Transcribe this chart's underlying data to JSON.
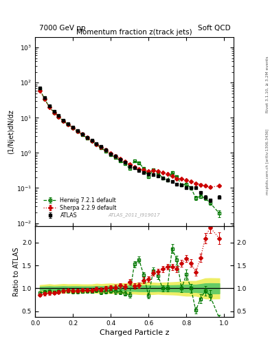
{
  "title_top_left": "7000 GeV pp",
  "title_top_right": "Soft QCD",
  "main_title": "Momentum fraction z(track jets)",
  "xlabel": "Charged Particle z",
  "ylabel_main": "(1/Njet)dN/dz",
  "ylabel_ratio": "Ratio to ATLAS",
  "right_label_top": "Rivet 3.1.10, ≥ 3.2M events",
  "right_label_bottom": "mcplots.cern.ch [arXiv:1306.3436]",
  "watermark": "ATLAS_2011_I919017",
  "atlas_z": [
    0.025,
    0.05,
    0.075,
    0.1,
    0.125,
    0.15,
    0.175,
    0.2,
    0.225,
    0.25,
    0.275,
    0.3,
    0.325,
    0.35,
    0.375,
    0.4,
    0.425,
    0.45,
    0.475,
    0.5,
    0.525,
    0.55,
    0.575,
    0.6,
    0.625,
    0.65,
    0.675,
    0.7,
    0.725,
    0.75,
    0.775,
    0.8,
    0.825,
    0.85,
    0.875,
    0.9,
    0.925,
    0.975
  ],
  "atlas_y": [
    70.0,
    38.0,
    22.0,
    15.5,
    11.5,
    8.5,
    6.8,
    5.5,
    4.4,
    3.5,
    2.8,
    2.3,
    1.8,
    1.5,
    1.2,
    0.95,
    0.8,
    0.65,
    0.55,
    0.42,
    0.38,
    0.32,
    0.28,
    0.25,
    0.24,
    0.22,
    0.19,
    0.17,
    0.15,
    0.13,
    0.12,
    0.1,
    0.1,
    0.1,
    0.075,
    0.055,
    0.045,
    0.055
  ],
  "atlas_yerr": [
    2.5,
    1.5,
    1.0,
    0.6,
    0.5,
    0.4,
    0.3,
    0.25,
    0.2,
    0.15,
    0.12,
    0.1,
    0.09,
    0.07,
    0.06,
    0.05,
    0.04,
    0.035,
    0.03,
    0.025,
    0.022,
    0.02,
    0.018,
    0.016,
    0.015,
    0.013,
    0.012,
    0.011,
    0.01,
    0.009,
    0.009,
    0.008,
    0.008,
    0.008,
    0.007,
    0.006,
    0.005,
    0.006
  ],
  "herwig_z": [
    0.025,
    0.05,
    0.075,
    0.1,
    0.125,
    0.15,
    0.175,
    0.2,
    0.225,
    0.25,
    0.275,
    0.3,
    0.325,
    0.35,
    0.375,
    0.4,
    0.425,
    0.45,
    0.475,
    0.5,
    0.525,
    0.55,
    0.575,
    0.6,
    0.625,
    0.65,
    0.675,
    0.7,
    0.725,
    0.75,
    0.775,
    0.8,
    0.825,
    0.85,
    0.875,
    0.9,
    0.925,
    0.975
  ],
  "herwig_y": [
    63.0,
    35.0,
    20.5,
    14.2,
    10.8,
    8.0,
    6.4,
    5.1,
    4.1,
    3.28,
    2.65,
    2.15,
    1.72,
    1.38,
    1.12,
    0.9,
    0.74,
    0.6,
    0.49,
    0.36,
    0.58,
    0.52,
    0.36,
    0.21,
    0.33,
    0.28,
    0.19,
    0.17,
    0.28,
    0.21,
    0.12,
    0.13,
    0.1,
    0.052,
    0.058,
    0.052,
    0.038,
    0.019
  ],
  "herwig_yerr": [
    2.0,
    1.3,
    0.9,
    0.55,
    0.45,
    0.35,
    0.28,
    0.22,
    0.18,
    0.14,
    0.11,
    0.09,
    0.08,
    0.07,
    0.06,
    0.05,
    0.04,
    0.035,
    0.03,
    0.025,
    0.025,
    0.022,
    0.02,
    0.016,
    0.018,
    0.015,
    0.013,
    0.012,
    0.015,
    0.013,
    0.01,
    0.011,
    0.01,
    0.007,
    0.007,
    0.006,
    0.005,
    0.004
  ],
  "sherpa_z": [
    0.025,
    0.05,
    0.075,
    0.1,
    0.125,
    0.15,
    0.175,
    0.2,
    0.225,
    0.25,
    0.275,
    0.3,
    0.325,
    0.35,
    0.375,
    0.4,
    0.425,
    0.45,
    0.475,
    0.5,
    0.525,
    0.55,
    0.575,
    0.6,
    0.625,
    0.65,
    0.675,
    0.7,
    0.725,
    0.75,
    0.775,
    0.8,
    0.825,
    0.85,
    0.875,
    0.9,
    0.925,
    0.975
  ],
  "sherpa_y": [
    59.5,
    33.5,
    19.8,
    14.0,
    10.6,
    8.0,
    6.5,
    5.25,
    4.2,
    3.38,
    2.7,
    2.2,
    1.78,
    1.46,
    1.2,
    0.97,
    0.82,
    0.69,
    0.57,
    0.48,
    0.4,
    0.34,
    0.33,
    0.3,
    0.32,
    0.3,
    0.27,
    0.25,
    0.22,
    0.185,
    0.185,
    0.165,
    0.155,
    0.135,
    0.125,
    0.115,
    0.105,
    0.115
  ],
  "sherpa_yerr": [
    2.0,
    1.3,
    0.9,
    0.55,
    0.45,
    0.35,
    0.28,
    0.22,
    0.18,
    0.14,
    0.11,
    0.09,
    0.08,
    0.07,
    0.06,
    0.05,
    0.04,
    0.035,
    0.03,
    0.025,
    0.022,
    0.02,
    0.018,
    0.016,
    0.015,
    0.013,
    0.012,
    0.011,
    0.01,
    0.009,
    0.009,
    0.008,
    0.008,
    0.008,
    0.007,
    0.006,
    0.006,
    0.007
  ],
  "atlas_color": "#000000",
  "herwig_color": "#007700",
  "sherpa_color": "#cc0000",
  "band_yellow": "#eeee66",
  "band_green": "#66cc66",
  "xlim": [
    0.0,
    1.05
  ],
  "ylim_main": [
    0.008,
    2000
  ],
  "ylim_ratio": [
    0.38,
    2.35
  ],
  "ratio_yticks": [
    0.5,
    1.0,
    1.5,
    2.0
  ]
}
